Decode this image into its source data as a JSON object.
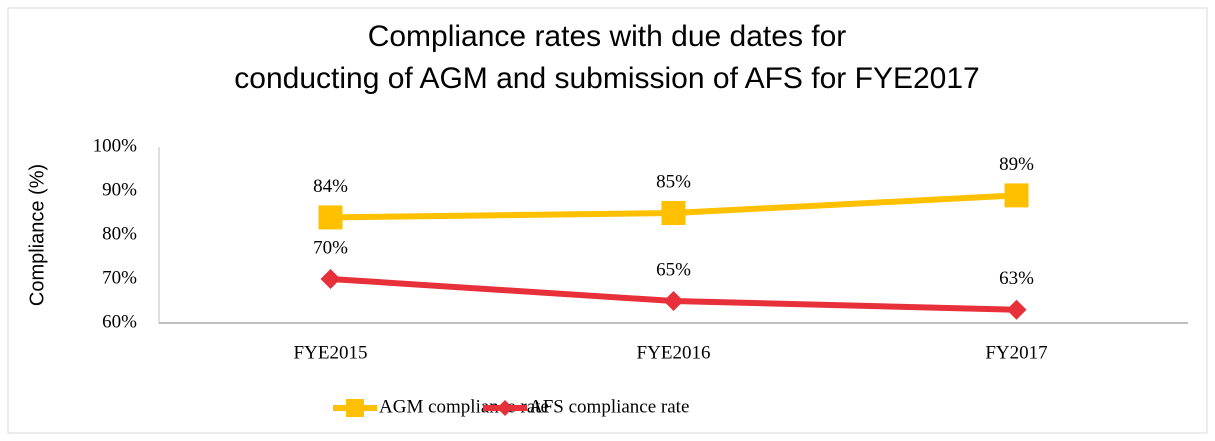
{
  "chart_data": {
    "type": "line",
    "title": [
      "Compliance rates with due dates for",
      "conducting of AGM and submission of AFS for FYE2017"
    ],
    "y_label": "Compliance (%)",
    "categories": [
      "FYE2015",
      "FYE2016",
      "FY2017"
    ],
    "series": [
      {
        "name": "AGM compliance rate",
        "color": "#ffc000",
        "marker": "square",
        "values": [
          84,
          85,
          89
        ],
        "value_labels": [
          "84%",
          "85%",
          "89%"
        ]
      },
      {
        "name": "AFS compliance rate",
        "color": "#e8303a",
        "marker": "diamond",
        "values": [
          70,
          65,
          63
        ],
        "value_labels": [
          "70%",
          "65%",
          "63%"
        ]
      }
    ],
    "ylim": [
      60,
      100
    ],
    "yticks": [
      {
        "value": 60,
        "label": "60%"
      },
      {
        "value": 70,
        "label": "70%"
      },
      {
        "value": 80,
        "label": "80%"
      },
      {
        "value": 90,
        "label": "90%"
      },
      {
        "value": 100,
        "label": "100%"
      }
    ],
    "grid": false,
    "legend": "bottom"
  }
}
